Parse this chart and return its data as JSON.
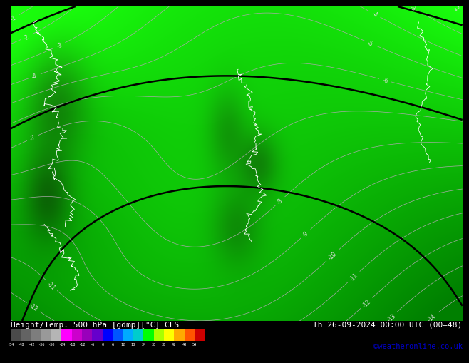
{
  "title_left": "Height/Temp. 500 hPa [gdmp][°C] CFS",
  "title_right": "Th 26-09-2024 00:00 UTC (00+48)",
  "credit": "©weatheronline.co.uk",
  "colorbar_values": [
    -54,
    -48,
    -42,
    -36,
    -30,
    -24,
    -18,
    -12,
    -6,
    0,
    6,
    12,
    18,
    24,
    30,
    36,
    42,
    48,
    54
  ],
  "colorbar_colors": [
    "#4a4a4a",
    "#636363",
    "#7d7d7d",
    "#999999",
    "#b5b5b5",
    "#ff00ff",
    "#cc00cc",
    "#9900bb",
    "#6600cc",
    "#0000ff",
    "#0055ff",
    "#00aaff",
    "#00cccc",
    "#00ff00",
    "#aaff00",
    "#ffff00",
    "#ffaa00",
    "#ff5500",
    "#cc0000"
  ],
  "map_bg": "#00cc00",
  "map_bg_dark": "#009900",
  "contour_temp_color": "#aaaaaa",
  "contour_height_color": "#000000",
  "label_color": "#dddddd",
  "credit_color": "#0000cc",
  "fig_width": 6.34,
  "fig_height": 4.9
}
